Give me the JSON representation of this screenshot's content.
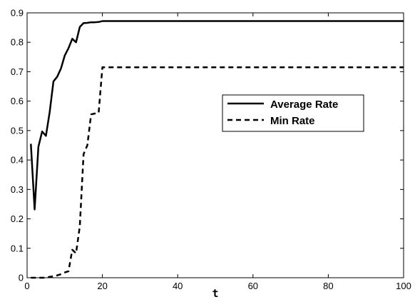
{
  "chart_data": {
    "type": "line",
    "title": "",
    "xlabel": "t",
    "ylabel": "",
    "xlim": [
      0,
      100
    ],
    "ylim": [
      0,
      0.9
    ],
    "x_ticks": [
      0,
      20,
      40,
      60,
      80,
      100
    ],
    "y_ticks": [
      0,
      0.1,
      0.2,
      0.3,
      0.4,
      0.5,
      0.6,
      0.7,
      0.8,
      0.9
    ],
    "grid": false,
    "legend_position": "center-right",
    "series": [
      {
        "name": "Average Rate",
        "style": "solid",
        "color": "#000000",
        "x": [
          1,
          2,
          3,
          4,
          5,
          6,
          7,
          8,
          9,
          10,
          11,
          12,
          13,
          14,
          15,
          16,
          17,
          18,
          19,
          20,
          100
        ],
        "y": [
          0.455,
          0.232,
          0.445,
          0.497,
          0.482,
          0.563,
          0.667,
          0.683,
          0.711,
          0.755,
          0.78,
          0.812,
          0.8,
          0.852,
          0.865,
          0.866,
          0.868,
          0.868,
          0.869,
          0.872,
          0.872
        ]
      },
      {
        "name": "Min Rate",
        "style": "dashed",
        "color": "#000000",
        "x": [
          1,
          2,
          3,
          4,
          5,
          6,
          7,
          8,
          9,
          10,
          11,
          12,
          13,
          14,
          15,
          16,
          17,
          18,
          19,
          20,
          100
        ],
        "y": [
          0,
          0,
          0,
          0,
          0,
          0.003,
          0.005,
          0.008,
          0.012,
          0.018,
          0.022,
          0.095,
          0.083,
          0.175,
          0.42,
          0.45,
          0.555,
          0.558,
          0.56,
          0.715,
          0.715
        ]
      }
    ]
  }
}
